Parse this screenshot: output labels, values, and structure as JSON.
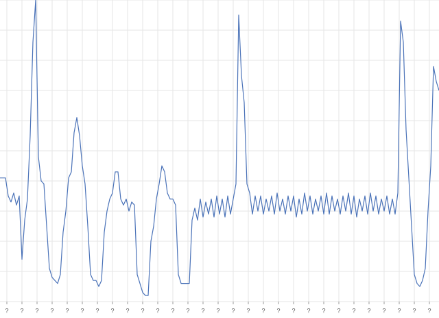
{
  "chart_data": {
    "type": "line",
    "x": [
      0,
      4,
      8,
      12,
      16,
      20,
      24,
      28,
      32,
      36,
      40,
      44,
      48,
      52,
      56,
      60,
      64,
      68,
      72,
      76,
      80,
      84,
      88,
      92,
      96,
      100,
      104,
      108,
      112,
      116,
      120,
      124,
      128,
      132,
      136,
      140,
      144,
      148,
      152,
      156,
      160,
      164,
      168,
      172,
      176,
      180,
      184,
      188,
      192,
      196,
      200,
      204,
      208,
      212,
      216,
      220,
      224,
      228,
      232,
      236,
      240,
      244,
      248,
      252,
      256,
      260,
      264,
      268,
      272,
      276,
      280,
      284,
      288,
      292,
      296,
      300,
      304,
      308,
      312,
      316,
      320,
      324,
      328,
      332,
      336,
      340,
      344,
      348,
      352,
      356,
      360,
      364,
      368,
      372,
      376,
      380,
      384,
      388,
      392,
      396,
      400,
      404,
      408,
      412,
      416,
      420,
      424,
      428,
      432,
      436,
      440,
      444,
      448,
      452,
      456,
      460,
      464,
      468,
      472,
      476,
      480,
      484,
      488,
      492,
      496,
      500,
      504,
      508,
      512,
      516,
      520,
      524,
      528,
      532,
      536,
      540,
      544,
      548,
      552,
      556,
      560,
      564,
      568,
      572,
      576,
      580,
      584,
      588,
      592,
      596,
      600,
      604,
      608,
      612,
      616,
      620,
      624,
      628,
      632,
      636,
      640
    ],
    "series": [
      {
        "color": "#4a72b8",
        "values": [
          41,
          41,
          41,
          35,
          33,
          36,
          32,
          35,
          14,
          27,
          34,
          55,
          86,
          100,
          48,
          40,
          39,
          25,
          11,
          8,
          7,
          6,
          9,
          23,
          30,
          41,
          43,
          56,
          61,
          55,
          45,
          39,
          25,
          9,
          7,
          7,
          5,
          7,
          23,
          30,
          34,
          36,
          43,
          43,
          34,
          32,
          34,
          30,
          33,
          32,
          9,
          6,
          3,
          2,
          2,
          20,
          25,
          34,
          39,
          45,
          43,
          36,
          34,
          34,
          32,
          9,
          6,
          6,
          6,
          6,
          27,
          31,
          27,
          34,
          28,
          33,
          29,
          34,
          28,
          35,
          29,
          34,
          28,
          35,
          29,
          34,
          39,
          95,
          75,
          66,
          39,
          36,
          29,
          35,
          30,
          35,
          29,
          34,
          30,
          35,
          29,
          36,
          30,
          34,
          29,
          35,
          30,
          35,
          28,
          34,
          29,
          36,
          30,
          35,
          29,
          34,
          30,
          35,
          29,
          36,
          29,
          35,
          30,
          34,
          29,
          35,
          30,
          36,
          29,
          35,
          28,
          34,
          30,
          35,
          29,
          36,
          30,
          35,
          29,
          34,
          30,
          35,
          29,
          34,
          29,
          36,
          93,
          86,
          57,
          41,
          25,
          9,
          6,
          5,
          7,
          11,
          30,
          45,
          78,
          73,
          70
        ]
      }
    ],
    "xlim": [
      0,
      640
    ],
    "xticks": [
      {
        "value": 10,
        "label": "?"
      },
      {
        "value": 32,
        "label": "?"
      },
      {
        "value": 54,
        "label": "?"
      },
      {
        "value": 76,
        "label": "?"
      },
      {
        "value": 98,
        "label": "?"
      },
      {
        "value": 120,
        "label": "?"
      },
      {
        "value": 142,
        "label": "?"
      },
      {
        "value": 164,
        "label": "?"
      },
      {
        "value": 186,
        "label": "?"
      },
      {
        "value": 208,
        "label": "?"
      },
      {
        "value": 230,
        "label": "?"
      },
      {
        "value": 252,
        "label": "?"
      },
      {
        "value": 274,
        "label": "?"
      },
      {
        "value": 296,
        "label": "?"
      },
      {
        "value": 318,
        "label": "?"
      },
      {
        "value": 340,
        "label": "?"
      },
      {
        "value": 362,
        "label": "?"
      },
      {
        "value": 384,
        "label": "?"
      },
      {
        "value": 406,
        "label": "?"
      },
      {
        "value": 428,
        "label": "?"
      },
      {
        "value": 450,
        "label": "?"
      },
      {
        "value": 472,
        "label": "?"
      },
      {
        "value": 494,
        "label": "?"
      },
      {
        "value": 516,
        "label": "?"
      },
      {
        "value": 538,
        "label": "?"
      },
      {
        "value": 560,
        "label": "?"
      },
      {
        "value": 582,
        "label": "?"
      },
      {
        "value": 604,
        "label": "?"
      },
      {
        "value": 626,
        "label": "?"
      }
    ],
    "ylim": [
      0,
      100
    ],
    "yticks": [
      0,
      10,
      20,
      30,
      40,
      50,
      60,
      70,
      80,
      90,
      100
    ],
    "grid": true
  }
}
